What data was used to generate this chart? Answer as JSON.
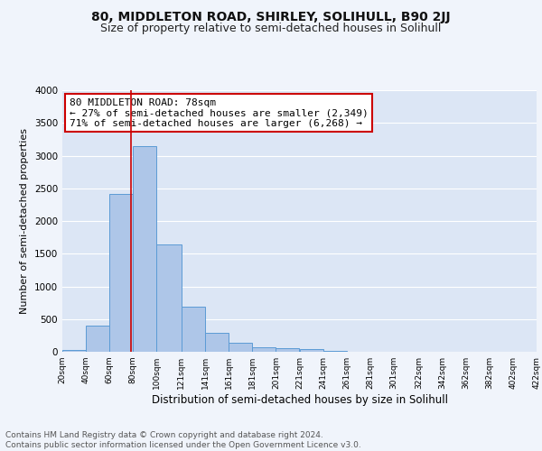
{
  "title1": "80, MIDDLETON ROAD, SHIRLEY, SOLIHULL, B90 2JJ",
  "title2": "Size of property relative to semi-detached houses in Solihull",
  "xlabel": "Distribution of semi-detached houses by size in Solihull",
  "ylabel": "Number of semi-detached properties",
  "footnote1": "Contains HM Land Registry data © Crown copyright and database right 2024.",
  "footnote2": "Contains public sector information licensed under the Open Government Licence v3.0.",
  "annotation_title": "80 MIDDLETON ROAD: 78sqm",
  "annotation_line1": "← 27% of semi-detached houses are smaller (2,349)",
  "annotation_line2": "71% of semi-detached houses are larger (6,268) →",
  "property_size": 78,
  "bar_edges": [
    20,
    40,
    60,
    80,
    100,
    121,
    141,
    161,
    181,
    201,
    221,
    241,
    261,
    281,
    301,
    322,
    342,
    362,
    382,
    402,
    422
  ],
  "bar_heights": [
    30,
    400,
    2420,
    3140,
    1640,
    690,
    295,
    135,
    75,
    55,
    35,
    10,
    0,
    0,
    0,
    0,
    0,
    0,
    0,
    0
  ],
  "bar_color": "#aec6e8",
  "bar_edge_color": "#5b9bd5",
  "vline_color": "#cc0000",
  "vline_x": 78,
  "ylim": [
    0,
    4000
  ],
  "xlim": [
    20,
    422
  ],
  "tick_labels": [
    "20sqm",
    "40sqm",
    "60sqm",
    "80sqm",
    "100sqm",
    "121sqm",
    "141sqm",
    "161sqm",
    "181sqm",
    "201sqm",
    "221sqm",
    "241sqm",
    "261sqm",
    "281sqm",
    "301sqm",
    "322sqm",
    "342sqm",
    "362sqm",
    "382sqm",
    "402sqm",
    "422sqm"
  ],
  "tick_positions": [
    20,
    40,
    60,
    80,
    100,
    121,
    141,
    161,
    181,
    201,
    221,
    241,
    261,
    281,
    301,
    322,
    342,
    362,
    382,
    402,
    422
  ],
  "bg_color": "#dce6f5",
  "fig_bg_color": "#f0f4fb",
  "grid_color": "#ffffff",
  "title1_fontsize": 10,
  "title2_fontsize": 9,
  "xlabel_fontsize": 8.5,
  "ylabel_fontsize": 8,
  "annotation_fontsize": 8,
  "footnote_fontsize": 6.5,
  "tick_fontsize": 6.5
}
